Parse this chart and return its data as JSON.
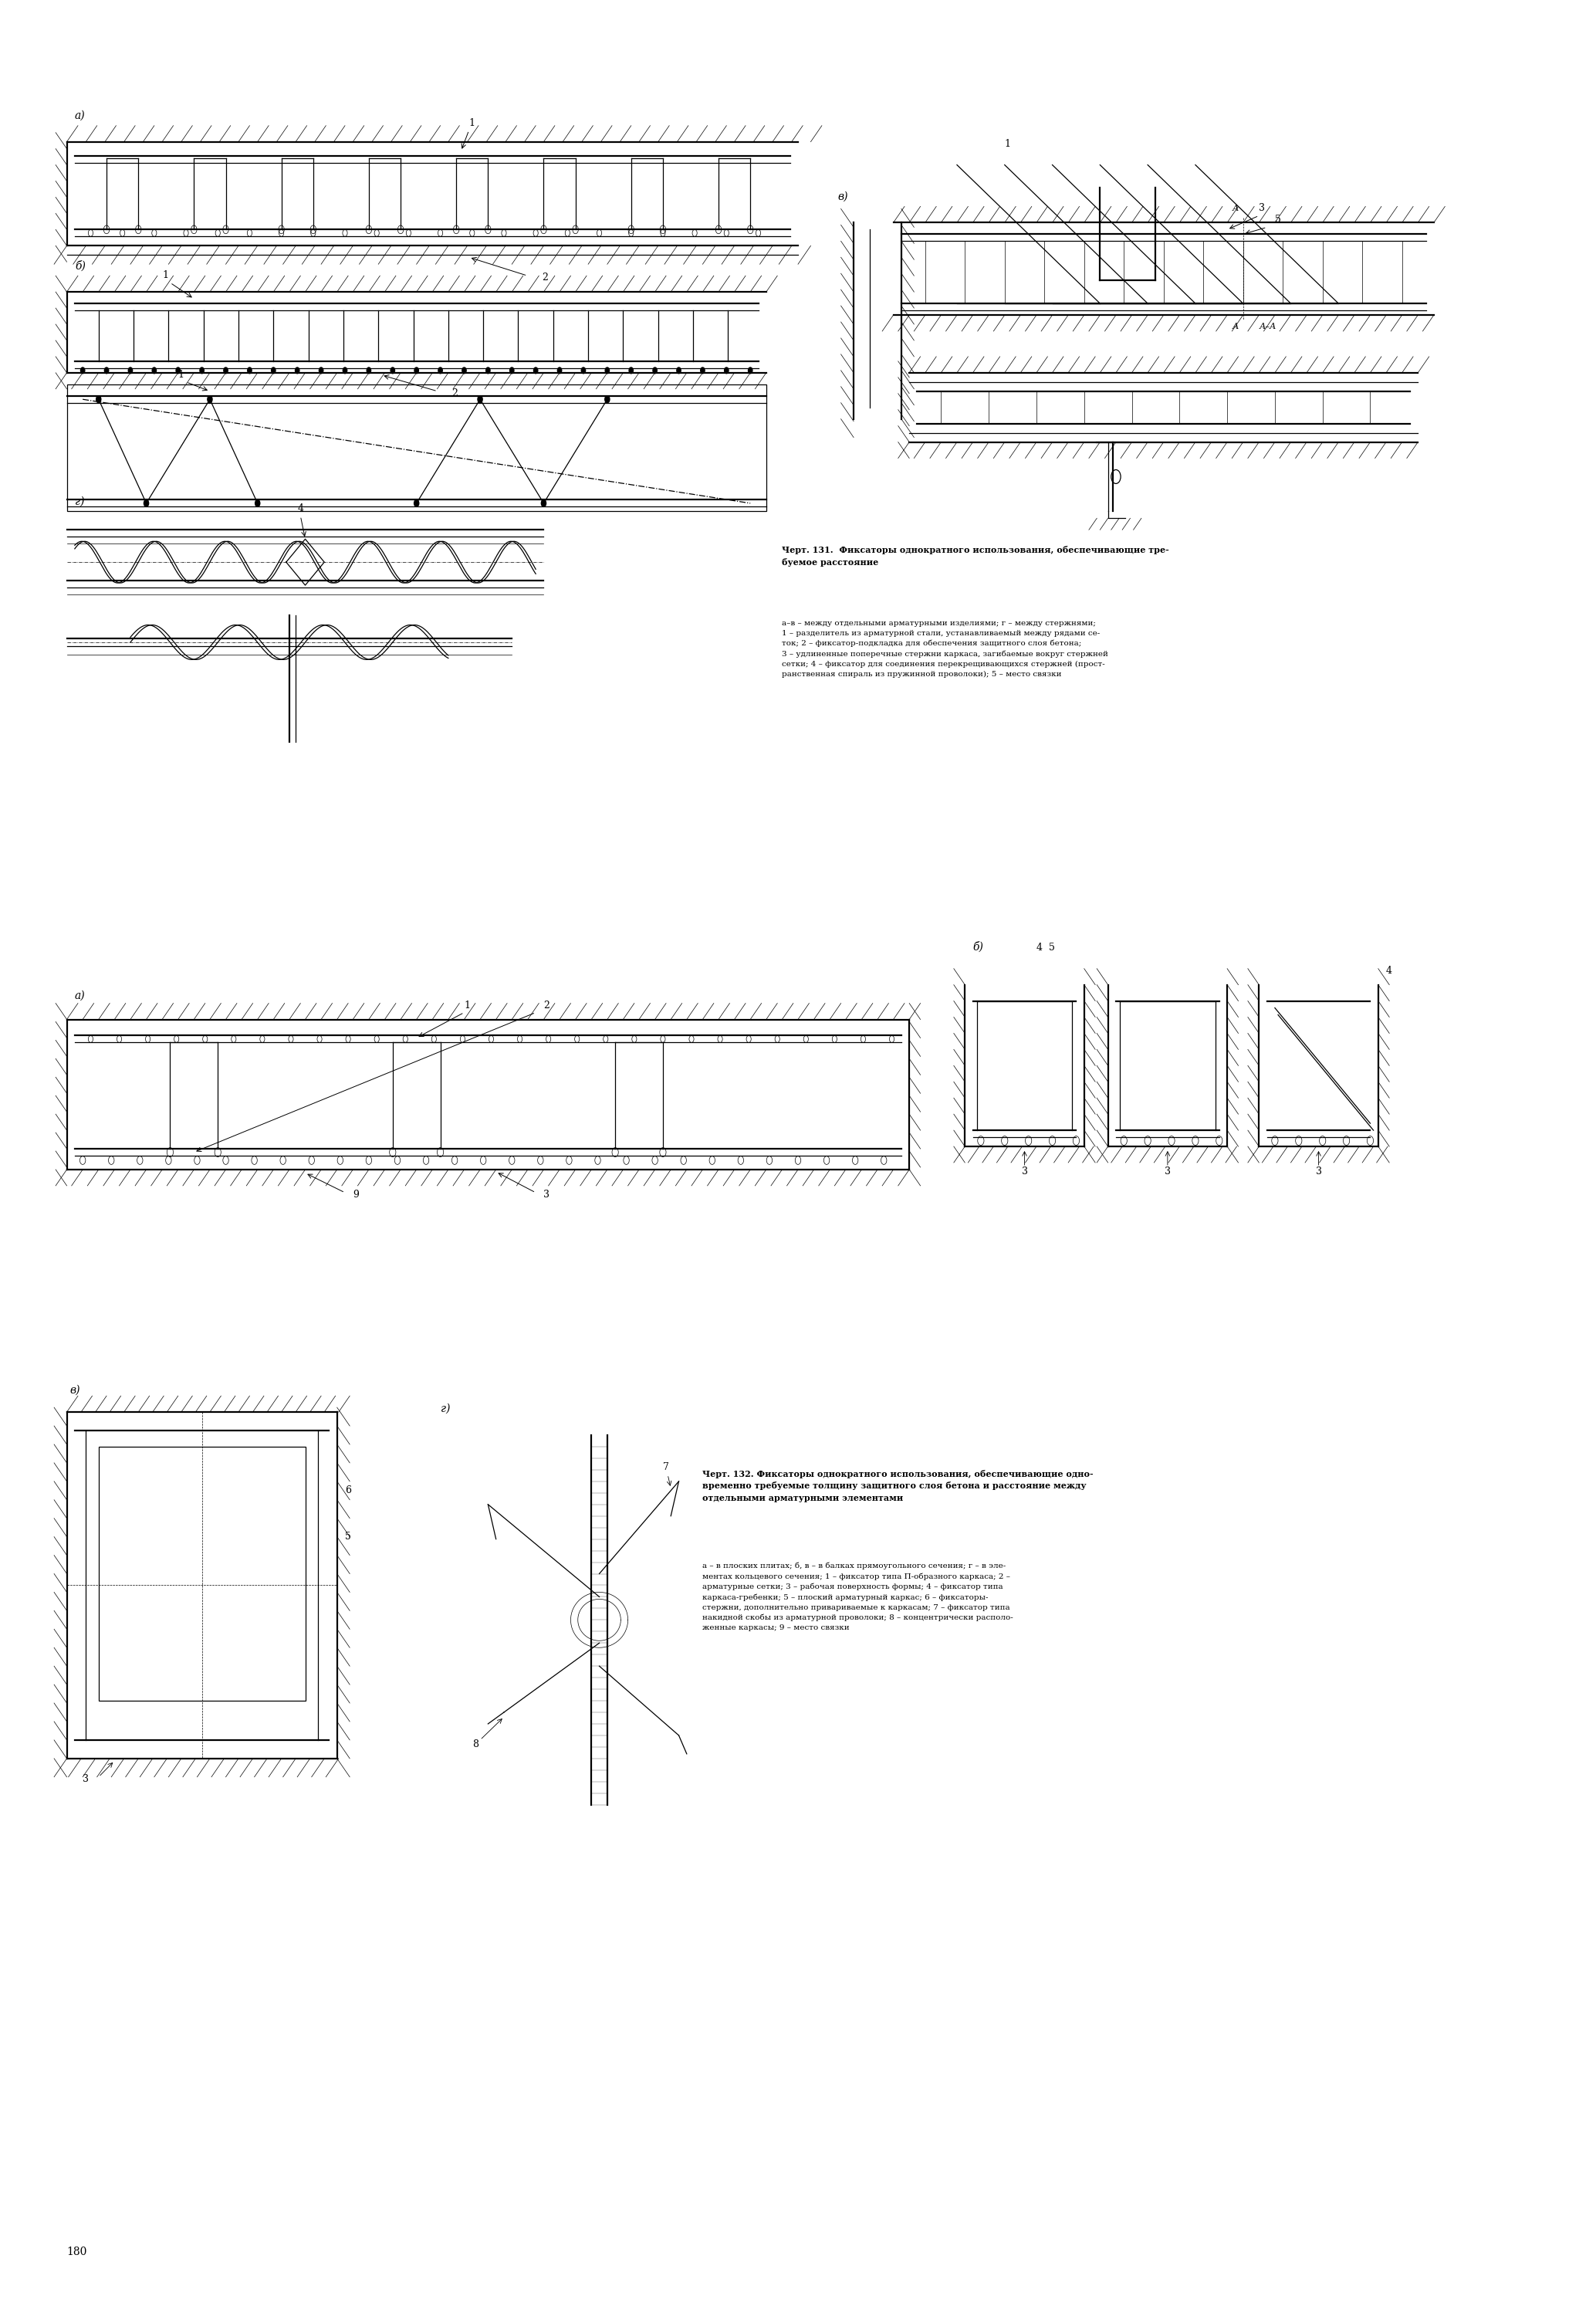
{
  "page_width": 20.68,
  "page_height": 30.0,
  "bg_color": "#ffffff",
  "line_color": "#000000",
  "caption131_title": "Черт. 131.  Фиксаторы однократного использования, обеспечивающие тре-\nбуемое расстояние",
  "caption131_body": "а–в – между отдельными арматурными изделиями; г – между стержнями;\n1 – разделитель из арматурной стали, устанавливаемый между рядами се-\nток; 2 – фиксатор-подкладка для обеспечения защитного слоя бетона;\n3 – удлиненные поперечные стержни каркаса, загибаемые вокруг стержней\nсетки; 4 – фиксатор для соединения перекрещивающихся стержней (прост-\nранственная спираль из пружинной проволоки); 5 – место связки",
  "caption132_title": "Черт. 132. Фиксаторы однократного использования, обеспечивающие одно-\nвременно требуемые толщину защитного слоя бетона и расстояние между\nотдельными арматурными элементами",
  "caption132_body": "а – в плоских плитах; б, в – в балках прямоугольного сечения; г – в эле-\nментах кольцевого сечения; 1 – фиксатор типа П-образного каркаса; 2 –\nарматурные сетки; 3 – рабочая поверхность формы; 4 – фиксатор типа\nкаркаса-гребенки; 5 – плоский арматурный каркас; 6 – фиксаторы-\nстержни, дополнительно привариваемые к каркасам; 7 – фиксатор типа\nнакидной скобы из арматурной проволоки; 8 – концентрически располо-\nженные каркасы; 9 – место связки",
  "page_number": "180"
}
